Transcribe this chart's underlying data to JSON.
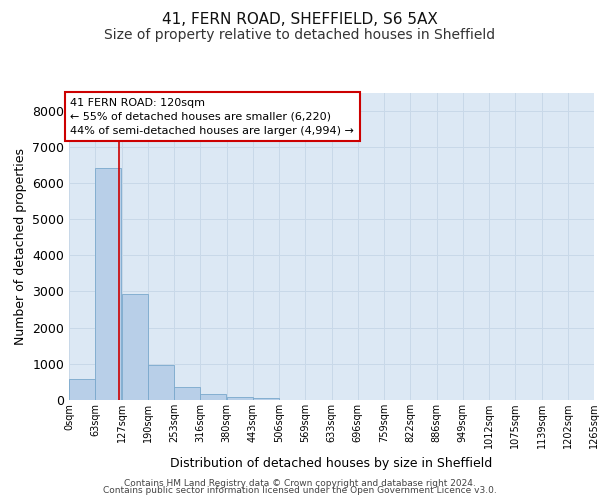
{
  "title1": "41, FERN ROAD, SHEFFIELD, S6 5AX",
  "title2": "Size of property relative to detached houses in Sheffield",
  "xlabel": "Distribution of detached houses by size in Sheffield",
  "ylabel": "Number of detached properties",
  "bin_edges": [
    0,
    63,
    127,
    190,
    253,
    316,
    380,
    443,
    506,
    569,
    633,
    696,
    759,
    822,
    886,
    949,
    1012,
    1075,
    1139,
    1202,
    1265
  ],
  "bin_labels": [
    "0sqm",
    "63sqm",
    "127sqm",
    "190sqm",
    "253sqm",
    "316sqm",
    "380sqm",
    "443sqm",
    "506sqm",
    "569sqm",
    "633sqm",
    "696sqm",
    "759sqm",
    "822sqm",
    "886sqm",
    "949sqm",
    "1012sqm",
    "1075sqm",
    "1139sqm",
    "1202sqm",
    "1265sqm"
  ],
  "bar_heights": [
    580,
    6400,
    2920,
    970,
    350,
    155,
    90,
    60,
    0,
    0,
    0,
    0,
    0,
    0,
    0,
    0,
    0,
    0,
    0,
    0
  ],
  "bar_color": "#b8cfe8",
  "bar_edge_color": "#7aa8cc",
  "property_line_x": 120,
  "property_line_color": "#cc0000",
  "annotation_line1": "41 FERN ROAD: 120sqm",
  "annotation_line2": "← 55% of detached houses are smaller (6,220)",
  "annotation_line3": "44% of semi-detached houses are larger (4,994) →",
  "annotation_box_color": "#ffffff",
  "annotation_box_edge_color": "#cc0000",
  "annotation_fontsize": 8,
  "ylim": [
    0,
    8500
  ],
  "yticks": [
    0,
    1000,
    2000,
    3000,
    4000,
    5000,
    6000,
    7000,
    8000
  ],
  "grid_color": "#c8d8e8",
  "background_color": "#dce8f4",
  "footer_line1": "Contains HM Land Registry data © Crown copyright and database right 2024.",
  "footer_line2": "Contains public sector information licensed under the Open Government Licence v3.0.",
  "title1_fontsize": 11,
  "title2_fontsize": 10
}
